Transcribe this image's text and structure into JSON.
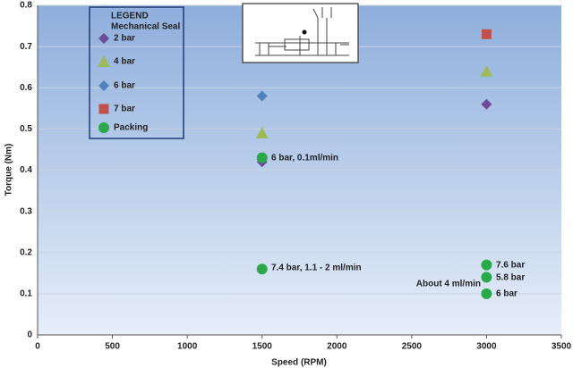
{
  "chart_data": {
    "type": "scatter",
    "xlabel": "Speed (RPM)",
    "ylabel": "Torque (Nm)",
    "xlim": [
      0,
      3500
    ],
    "xticks": [
      0,
      500,
      1000,
      1500,
      2000,
      2500,
      3000,
      3500
    ],
    "ylim": [
      0,
      0.8
    ],
    "yticks": [
      0,
      0.1,
      0.2,
      0.3,
      0.4,
      0.5,
      0.6,
      0.7,
      0.8
    ],
    "grid": true,
    "legend_title": "LEGEND",
    "legend_subtitle": "Mechanical Seal",
    "legend_position": "upper left",
    "series": [
      {
        "name": "2 bar",
        "color": "#6b4c9a",
        "marker": "diamond",
        "x": [
          1500,
          3000
        ],
        "values": [
          0.42,
          0.56
        ]
      },
      {
        "name": "4 bar",
        "color": "#9bbb59",
        "marker": "triangle",
        "x": [
          1500,
          3000
        ],
        "values": [
          0.49,
          0.64
        ]
      },
      {
        "name": "6 bar",
        "color": "#4f81bd",
        "marker": "diamond",
        "x": [
          1500
        ],
        "values": [
          0.58
        ]
      },
      {
        "name": "7 bar",
        "color": "#c0504d",
        "marker": "square",
        "x": [
          3000
        ],
        "values": [
          0.73
        ]
      },
      {
        "name": "Packing",
        "color": "#2aa84a",
        "marker": "circle",
        "x": [
          1500,
          1500,
          3000,
          3000,
          3000
        ],
        "values": [
          0.43,
          0.16,
          0.17,
          0.14,
          0.1
        ]
      }
    ],
    "annotations": [
      "6 bar, 0.1ml/min",
      "7.4 bar, 1.1 - 2 ml/min",
      "7.6 bar",
      "5.8 bar",
      "About 4 ml/min",
      "6 bar"
    ]
  }
}
